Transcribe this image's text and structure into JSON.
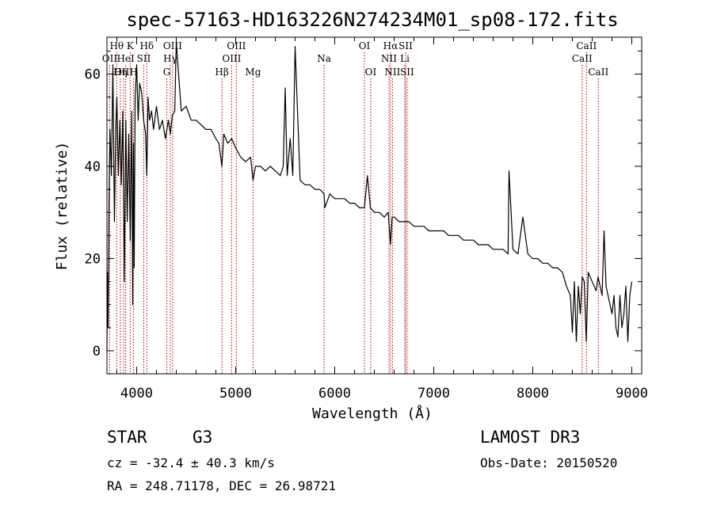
{
  "chart_data": {
    "type": "line",
    "title": "spec-57163-HD163226N274234M01_sp08-172.fits",
    "xlabel": "Wavelength (Å)",
    "ylabel": "Flux (relative)",
    "xlim": [
      3700,
      9100
    ],
    "ylim": [
      -5,
      68
    ],
    "xticks": [
      4000,
      5000,
      6000,
      7000,
      8000,
      9000
    ],
    "xtick_labels": [
      "4000",
      "5000",
      "6000",
      "7000",
      "8000",
      "9000"
    ],
    "yticks": [
      0,
      20,
      40,
      60
    ],
    "ytick_labels": [
      "0",
      "20",
      "40",
      "60"
    ],
    "series": [
      {
        "name": "spectrum",
        "x": [
          3700,
          3705,
          3712,
          3720,
          3730,
          3745,
          3760,
          3775,
          3790,
          3800,
          3815,
          3830,
          3845,
          3860,
          3875,
          3890,
          3905,
          3920,
          3935,
          3950,
          3960,
          3968,
          3975,
          3985,
          4000,
          4015,
          4030,
          4050,
          4070,
          4090,
          4102,
          4115,
          4130,
          4150,
          4170,
          4200,
          4230,
          4260,
          4290,
          4320,
          4340,
          4360,
          4385,
          4400,
          4450,
          4500,
          4550,
          4600,
          4650,
          4700,
          4750,
          4800,
          4830,
          4861,
          4880,
          4920,
          4960,
          5000,
          5050,
          5100,
          5150,
          5175,
          5200,
          5250,
          5300,
          5350,
          5400,
          5450,
          5480,
          5500,
          5520,
          5550,
          5577,
          5600,
          5650,
          5700,
          5750,
          5800,
          5850,
          5893,
          5900,
          5950,
          6000,
          6050,
          6100,
          6150,
          6200,
          6250,
          6300,
          6330,
          6360,
          6400,
          6450,
          6500,
          6540,
          6563,
          6580,
          6600,
          6650,
          6700,
          6750,
          6800,
          6850,
          6900,
          6950,
          7000,
          7050,
          7100,
          7150,
          7200,
          7250,
          7300,
          7350,
          7400,
          7450,
          7500,
          7550,
          7600,
          7650,
          7700,
          7750,
          7760,
          7800,
          7850,
          7900,
          7950,
          8000,
          8050,
          8100,
          8150,
          8200,
          8250,
          8300,
          8340,
          8380,
          8400,
          8420,
          8440,
          8460,
          8480,
          8500,
          8520,
          8540,
          8560,
          8580,
          8600,
          8620,
          8640,
          8660,
          8680,
          8700,
          8720,
          8740,
          8760,
          8780,
          8800,
          8820,
          8840,
          8860,
          8880,
          8900,
          8920,
          8940,
          8960,
          8980,
          9000
        ],
        "y": [
          0,
          17,
          5,
          30,
          48,
          38,
          62,
          28,
          49,
          55,
          38,
          50,
          36,
          52,
          15,
          50,
          28,
          47,
          24,
          52,
          10,
          45,
          18,
          55,
          62,
          50,
          58,
          56,
          50,
          47,
          38,
          55,
          50,
          52,
          48,
          53,
          48,
          50,
          46,
          50,
          47,
          51,
          52,
          67,
          52,
          53,
          50,
          50,
          49,
          48,
          48,
          46,
          45,
          40,
          47,
          45,
          46,
          44,
          42,
          41,
          42,
          37,
          40,
          40,
          39,
          40,
          39,
          38,
          40,
          57,
          38,
          46,
          38,
          66,
          37,
          36,
          36,
          35,
          35,
          34,
          31,
          34,
          33,
          33,
          33,
          32,
          32,
          31,
          31,
          38,
          31,
          30,
          30,
          29,
          30,
          23,
          29,
          29,
          28,
          28,
          28,
          27,
          27,
          27,
          26,
          26,
          26,
          26,
          25,
          25,
          25,
          24,
          24,
          24,
          23,
          23,
          23,
          22,
          22,
          22,
          21,
          39,
          22,
          21,
          29,
          21,
          20,
          20,
          19,
          19,
          18,
          18,
          17,
          14,
          12,
          4,
          15,
          2,
          14,
          8,
          16,
          15,
          2,
          17,
          16,
          15,
          14,
          13,
          16,
          14,
          12,
          26,
          14,
          12,
          10,
          8,
          12,
          5,
          3,
          12,
          5,
          8,
          14,
          2,
          12,
          15
        ]
      }
    ],
    "spectral_lines": [
      {
        "label": "OII",
        "wave": 3727,
        "row": 2
      },
      {
        "label": "Hθ",
        "wave": 3798,
        "row": 1
      },
      {
        "label": "OIII",
        "wave": 3869,
        "row": 3
      },
      {
        "label": "K",
        "wave": 3934,
        "row": 1
      },
      {
        "label": "HeI",
        "wave": 3889,
        "row": 2
      },
      {
        "label": "Hη",
        "wave": 3835,
        "row": 3
      },
      {
        "label": "H",
        "wave": 3969,
        "row": 3
      },
      {
        "label": "SII",
        "wave": 4072,
        "row": 2
      },
      {
        "label": "Hδ",
        "wave": 4102,
        "row": 1
      },
      {
        "label": "OIII",
        "wave": 4363,
        "row": 1
      },
      {
        "label": "Hγ",
        "wave": 4340,
        "row": 2
      },
      {
        "label": "G",
        "wave": 4305,
        "row": 3
      },
      {
        "label": "Hβ",
        "wave": 4861,
        "row": 3
      },
      {
        "label": "OIII",
        "wave": 5007,
        "row": 1
      },
      {
        "label": "OIII",
        "wave": 4959,
        "row": 2
      },
      {
        "label": "Mg",
        "wave": 5175,
        "row": 3
      },
      {
        "label": "Na",
        "wave": 5893,
        "row": 2
      },
      {
        "label": "OI",
        "wave": 6300,
        "row": 1
      },
      {
        "label": "OI",
        "wave": 6363,
        "row": 3
      },
      {
        "label": "Hα",
        "wave": 6563,
        "row": 1
      },
      {
        "label": "NII",
        "wave": 6548,
        "row": 2
      },
      {
        "label": "NII",
        "wave": 6583,
        "row": 3
      },
      {
        "label": "SII",
        "wave": 6716,
        "row": 1
      },
      {
        "label": "Li",
        "wave": 6708,
        "row": 2
      },
      {
        "label": "SII",
        "wave": 6731,
        "row": 3
      },
      {
        "label": "CaII",
        "wave": 8542,
        "row": 1
      },
      {
        "label": "CaII",
        "wave": 8498,
        "row": 2
      },
      {
        "label": "CaII",
        "wave": 8662,
        "row": 3
      }
    ]
  },
  "info": {
    "obj_class": "STAR",
    "subclass": "G3",
    "cz": "cz = -32.4 ± 40.3 km/s",
    "coords": "RA = 248.71178, DEC =  26.98721",
    "survey": "LAMOST DR3",
    "obs_date": "Obs-Date: 20150520"
  },
  "colors": {
    "spectrum": "#000000",
    "line_marker": "#b00000",
    "axes": "#000000"
  }
}
